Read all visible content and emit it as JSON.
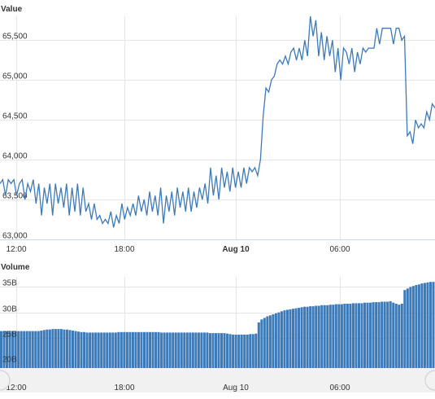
{
  "chart_data": [
    {
      "type": "line",
      "title": "Value",
      "x_ticks": [
        "12:00",
        "18:00",
        "Aug 10",
        "06:00"
      ],
      "y_ticks": [
        "63,000",
        "63,500",
        "64,000",
        "64,500",
        "65,000",
        "65,500"
      ],
      "ylim": [
        63000,
        65800
      ],
      "color": "#3d7ab8",
      "grid": true,
      "series": [
        {
          "values": [
            63700,
            63750,
            63550,
            63750,
            63700,
            63750,
            63550,
            63700,
            63750,
            63500,
            63700,
            63600,
            63750,
            63450,
            63700,
            63300,
            63650,
            63450,
            63700,
            63300,
            63700,
            63450,
            63650,
            63400,
            63700,
            63300,
            63650,
            63350,
            63700,
            63300,
            63650,
            63350,
            63450,
            63250,
            63450,
            63250,
            63300,
            63200,
            63250,
            63200,
            63350,
            63150,
            63300,
            63200,
            63450,
            63250,
            63400,
            63300,
            63450,
            63300,
            63550,
            63350,
            63500,
            63300,
            63600,
            63350,
            63550,
            63300,
            63650,
            63200,
            63550,
            63350,
            63600,
            63300,
            63650,
            63400,
            63600,
            63350,
            63650,
            63350,
            63600,
            63400,
            63650,
            63500,
            63700,
            63450,
            63900,
            63550,
            63800,
            63500,
            63900,
            63650,
            63850,
            63600,
            63900,
            63650,
            63850,
            63650,
            63900,
            63700,
            63900,
            63850,
            63900,
            63800,
            64000,
            64550,
            64900,
            64850,
            65000,
            65050,
            65200,
            65250,
            65200,
            65300,
            65200,
            65350,
            65400,
            65250,
            65400,
            65250,
            65500,
            65300,
            65800,
            65550,
            65750,
            65300,
            65600,
            65250,
            65550,
            65300,
            65500,
            65100,
            65400,
            65000,
            65400,
            65350,
            65200,
            65400,
            65100,
            65350,
            65200,
            65400,
            65350,
            65400,
            65400,
            65400,
            65650,
            65450,
            65650,
            65650,
            65650,
            65650,
            65450,
            65650,
            65650,
            65500,
            65550,
            64300,
            64350,
            64200,
            64500,
            64400,
            64450,
            64400,
            64600,
            64500,
            64700,
            64650
          ]
        }
      ]
    },
    {
      "type": "bar",
      "title": "Volume",
      "x_ticks": [
        "12:00",
        "18:00",
        "Aug 10",
        "06:00"
      ],
      "y_ticks": [
        "20B",
        "25B",
        "30B",
        "35B"
      ],
      "ylim": [
        19000000000,
        37000000000
      ],
      "color": "#3d7ab8",
      "grid": true,
      "series": [
        {
          "values": [
            26300000000,
            26300000000,
            26300000000,
            26300000000,
            26300000000,
            26300000000,
            26300000000,
            26300000000,
            26300000000,
            26300000000,
            26300000000,
            26300000000,
            26300000000,
            26300000000,
            26400000000,
            26500000000,
            26600000000,
            26600000000,
            26700000000,
            26700000000,
            26700000000,
            26700000000,
            26600000000,
            26600000000,
            26500000000,
            26400000000,
            26300000000,
            26200000000,
            26100000000,
            26100000000,
            26000000000,
            26000000000,
            26000000000,
            26000000000,
            26000000000,
            26000000000,
            26000000000,
            26000000000,
            26000000000,
            26000000000,
            26000000000,
            26100000000,
            26100000000,
            26100000000,
            26100000000,
            26100000000,
            26100000000,
            26100000000,
            26100000000,
            26100000000,
            26100000000,
            26100000000,
            26100000000,
            26100000000,
            26100000000,
            26100000000,
            26000000000,
            26000000000,
            26000000000,
            26000000000,
            26000000000,
            26000000000,
            26000000000,
            26000000000,
            26000000000,
            26000000000,
            26000000000,
            26000000000,
            26000000000,
            26000000000,
            26000000000,
            26000000000,
            26000000000,
            25900000000,
            25900000000,
            25900000000,
            25900000000,
            25900000000,
            25900000000,
            25800000000,
            25700000000,
            25600000000,
            25600000000,
            25600000000,
            25600000000,
            25600000000,
            25600000000,
            25700000000,
            25700000000,
            25800000000,
            28000000000,
            28600000000,
            28900000000,
            29200000000,
            29400000000,
            29600000000,
            29800000000,
            30000000000,
            30200000000,
            30400000000,
            30500000000,
            30600000000,
            30700000000,
            30800000000,
            30900000000,
            31000000000,
            31100000000,
            31100000000,
            31200000000,
            31200000000,
            31300000000,
            31300000000,
            31400000000,
            31400000000,
            31400000000,
            31500000000,
            31500000000,
            31600000000,
            31600000000,
            31600000000,
            31700000000,
            31700000000,
            31700000000,
            31800000000,
            31800000000,
            31800000000,
            31800000000,
            31900000000,
            31900000000,
            31900000000,
            32000000000,
            32000000000,
            32000000000,
            32100000000,
            32100000000,
            32100000000,
            32200000000,
            31900000000,
            31700000000,
            31500000000,
            31700000000,
            34400000000,
            34700000000,
            35000000000,
            35200000000,
            35400000000,
            35500000000,
            35700000000,
            35800000000,
            35900000000,
            36000000000,
            36000000000
          ]
        }
      ]
    }
  ]
}
